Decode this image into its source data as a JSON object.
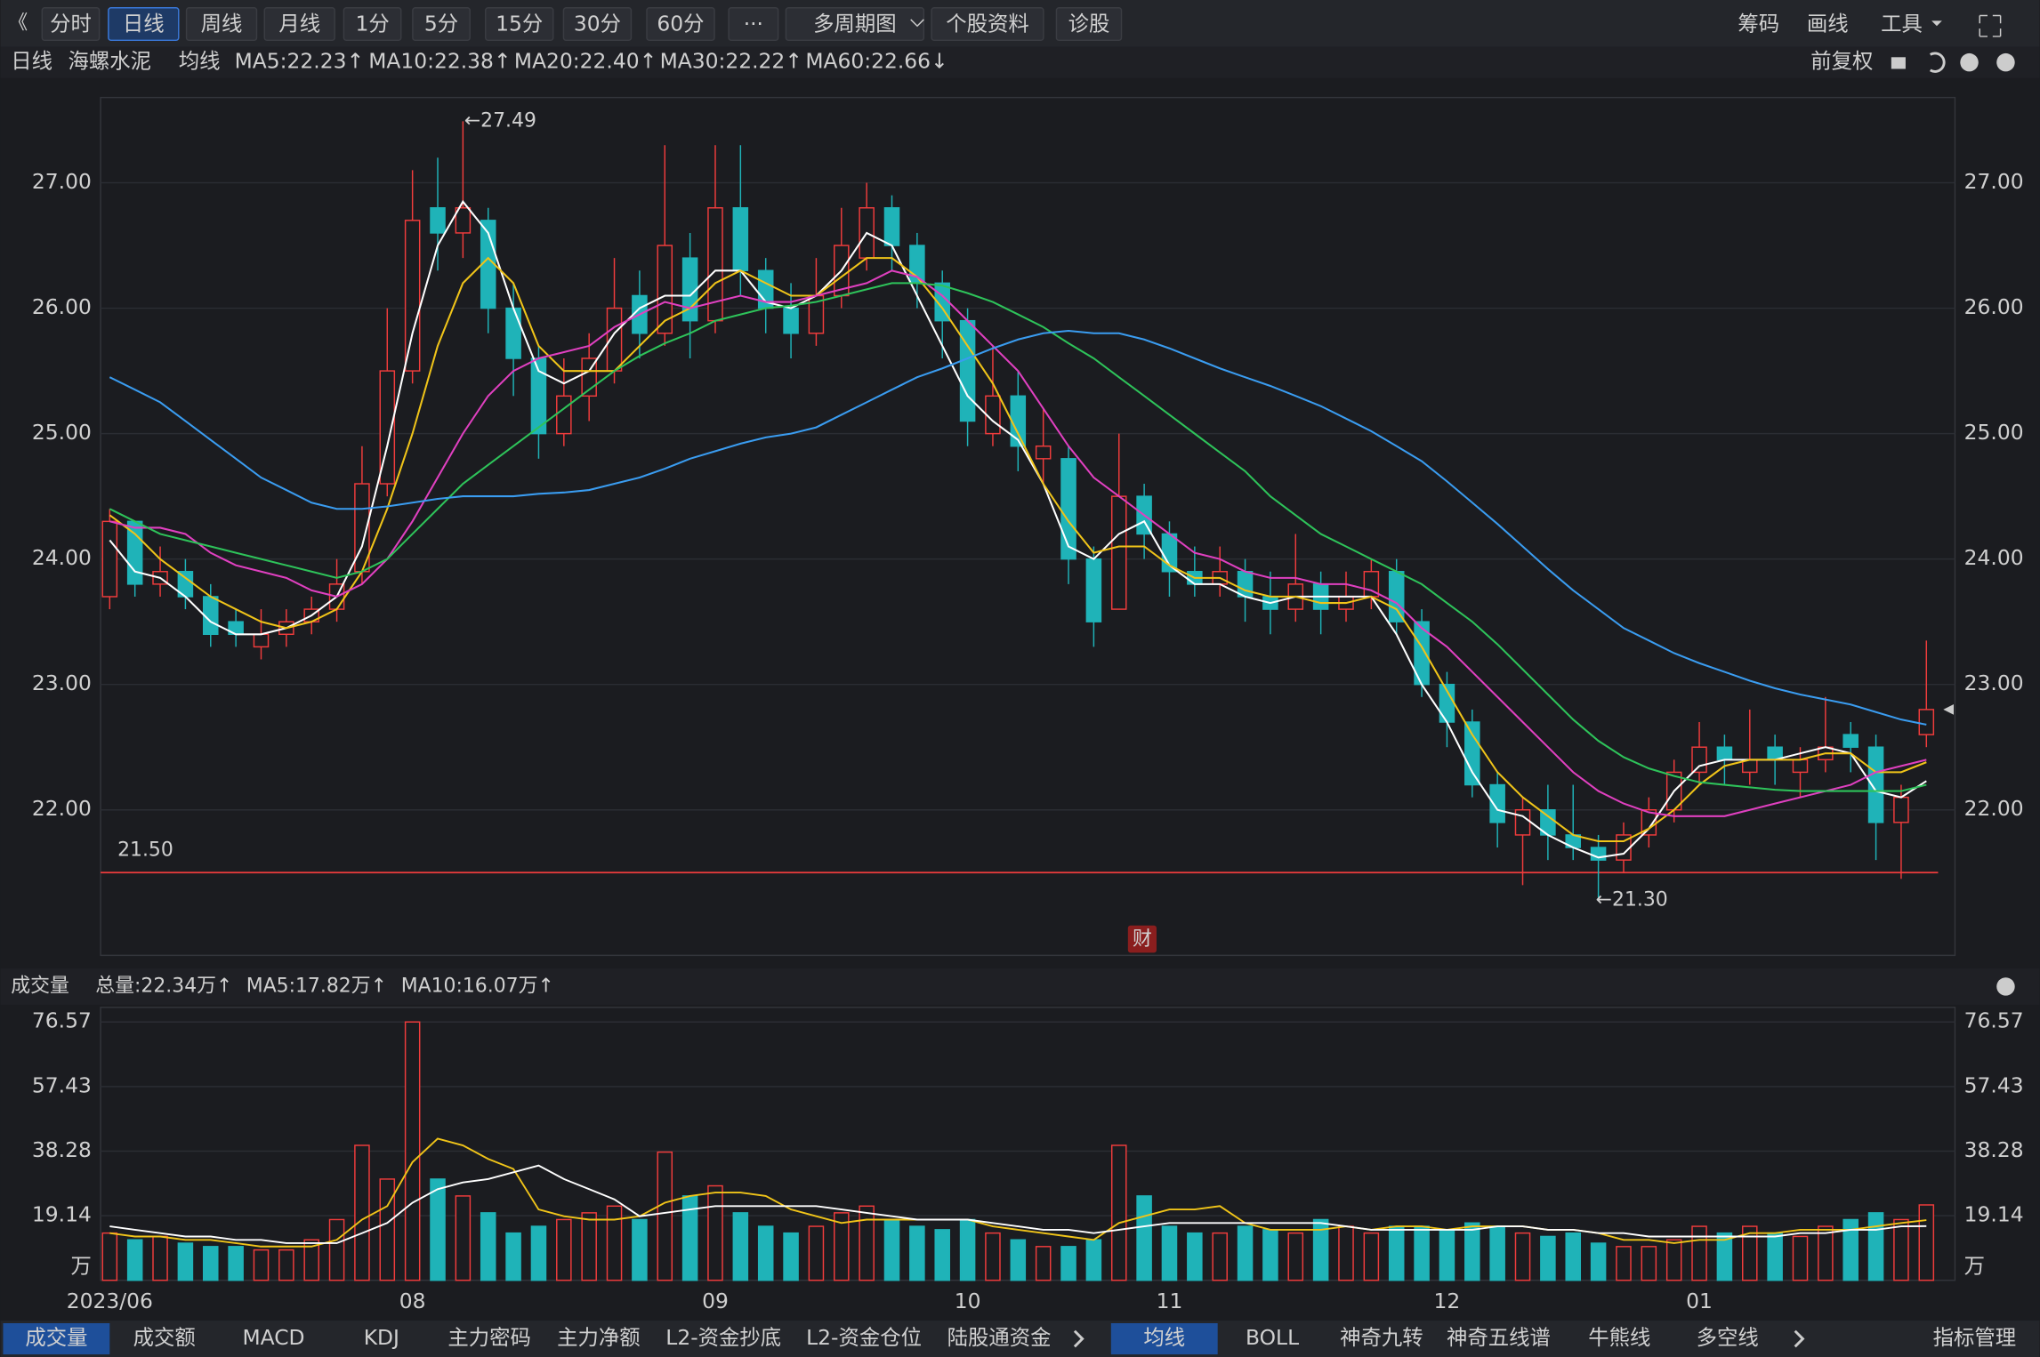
{
  "toolbar": {
    "back": "《",
    "items": [
      "分时",
      "日线",
      "周线",
      "月线",
      "1分",
      "5分",
      "15分",
      "30分",
      "60分",
      "···",
      "多周期图",
      "个股资料",
      "诊股"
    ],
    "right": [
      "筹码",
      "画线",
      "工具"
    ]
  },
  "legend": {
    "period": "日线",
    "name": "海螺水泥",
    "ma_title": "均线",
    "adjust": "前复权",
    "items": [
      {
        "text": "MA5:22.23↑",
        "color": "#ffffff"
      },
      {
        "text": "MA10:22.38↑",
        "color": "#f0c419"
      },
      {
        "text": "MA20:22.40↑",
        "color": "#e040c0"
      },
      {
        "text": "MA30:22.22↑",
        "color": "#2ec35a"
      },
      {
        "text": "MA60:22.66↓",
        "color": "#3a9cf0"
      }
    ]
  },
  "volume_legend": {
    "title": "成交量",
    "items": [
      {
        "text": "总量:22.34万↑",
        "color": "#1fc0c8"
      },
      {
        "text": "MA5:17.82万↑",
        "color": "#f0c419"
      },
      {
        "text": "MA10:16.07万↑",
        "color": "#ffffff"
      }
    ]
  },
  "tabs": {
    "left": [
      "成交量",
      "成交额",
      "MACD",
      "KDJ",
      "主力密码",
      "主力净额",
      "L2-资金抄底",
      "L2-资金仓位",
      "陆股通资金"
    ],
    "right": [
      "均线",
      "BOLL",
      "神奇九转",
      "神奇五线谱",
      "牛熊线",
      "多空线",
      "指标管理"
    ]
  },
  "chart_data": [
    {
      "type": "candlestick",
      "up_color": "#f03c3c",
      "down_color": "#1fb3b8",
      "categories": [
        "2023/06",
        null,
        null,
        null,
        null,
        null,
        null,
        null,
        null,
        null,
        null,
        null,
        "08",
        null,
        null,
        null,
        null,
        null,
        null,
        null,
        null,
        null,
        null,
        null,
        "09",
        null,
        null,
        null,
        null,
        null,
        null,
        null,
        null,
        null,
        "10",
        null,
        null,
        null,
        null,
        null,
        null,
        null,
        "11",
        null,
        null,
        null,
        null,
        null,
        null,
        null,
        null,
        null,
        null,
        "12",
        null,
        null,
        null,
        null,
        null,
        null,
        null,
        null,
        null,
        "01",
        null,
        null,
        null,
        null,
        null,
        null,
        null,
        null,
        null
      ],
      "open": [
        23.7,
        24.3,
        23.8,
        23.9,
        23.7,
        23.5,
        23.3,
        23.4,
        23.5,
        23.6,
        23.9,
        24.6,
        25.5,
        26.8,
        26.6,
        26.7,
        26.0,
        25.6,
        25.0,
        25.3,
        25.5,
        26.1,
        25.8,
        26.4,
        25.9,
        26.8,
        26.3,
        26.0,
        25.8,
        26.1,
        26.4,
        26.8,
        26.5,
        26.2,
        25.9,
        25.0,
        25.3,
        24.8,
        24.8,
        24.0,
        23.6,
        24.5,
        24.2,
        23.9,
        23.8,
        23.9,
        23.7,
        23.6,
        23.8,
        23.6,
        23.7,
        23.9,
        23.5,
        23.0,
        22.7,
        22.2,
        21.8,
        22.0,
        21.8,
        21.7,
        21.6,
        21.8,
        22.0,
        22.3,
        22.5,
        22.3,
        22.5,
        22.3,
        22.4,
        22.6,
        22.5,
        21.9,
        22.6
      ],
      "high": [
        24.4,
        24.3,
        24.1,
        24.0,
        23.8,
        23.6,
        23.6,
        23.6,
        23.7,
        24.0,
        24.9,
        26.0,
        27.1,
        27.2,
        27.49,
        26.8,
        26.2,
        25.7,
        25.6,
        25.8,
        26.4,
        26.3,
        27.3,
        26.6,
        27.3,
        27.3,
        26.4,
        26.2,
        26.4,
        26.8,
        27.0,
        26.9,
        26.6,
        26.3,
        26.0,
        25.7,
        25.5,
        25.2,
        24.9,
        24.1,
        25.0,
        24.6,
        24.3,
        24.1,
        24.1,
        24.0,
        23.9,
        24.2,
        23.9,
        23.9,
        24.0,
        24.0,
        23.6,
        23.1,
        22.8,
        22.3,
        22.1,
        22.2,
        22.2,
        21.8,
        21.9,
        22.1,
        22.4,
        22.7,
        22.6,
        22.8,
        22.6,
        22.5,
        22.9,
        22.7,
        22.6,
        22.2,
        23.35
      ],
      "low": [
        23.6,
        23.7,
        23.7,
        23.6,
        23.3,
        23.3,
        23.2,
        23.3,
        23.4,
        23.5,
        23.8,
        24.5,
        25.4,
        26.3,
        26.4,
        25.8,
        25.3,
        24.8,
        24.9,
        25.1,
        25.4,
        25.6,
        25.7,
        25.6,
        25.8,
        26.1,
        25.8,
        25.6,
        25.7,
        26.0,
        26.3,
        26.3,
        26.0,
        25.6,
        24.9,
        24.9,
        24.7,
        24.6,
        23.8,
        23.3,
        23.6,
        24.0,
        23.7,
        23.7,
        23.7,
        23.5,
        23.4,
        23.5,
        23.4,
        23.5,
        23.6,
        23.4,
        22.9,
        22.5,
        22.1,
        21.7,
        21.4,
        21.6,
        21.6,
        21.3,
        21.5,
        21.7,
        21.9,
        22.2,
        22.2,
        22.2,
        22.2,
        22.1,
        22.3,
        22.3,
        21.6,
        21.45,
        22.5
      ],
      "close": [
        24.3,
        23.8,
        23.9,
        23.7,
        23.4,
        23.4,
        23.4,
        23.5,
        23.6,
        23.8,
        24.6,
        25.5,
        26.7,
        26.6,
        26.8,
        26.0,
        25.6,
        25.0,
        25.3,
        25.6,
        26.0,
        25.8,
        26.5,
        25.9,
        26.8,
        26.3,
        26.0,
        25.8,
        26.1,
        26.5,
        26.8,
        26.5,
        26.2,
        25.9,
        25.1,
        25.3,
        24.9,
        24.9,
        24.0,
        23.5,
        24.5,
        24.2,
        23.9,
        23.8,
        23.9,
        23.7,
        23.6,
        23.8,
        23.6,
        23.7,
        23.9,
        23.5,
        23.0,
        22.7,
        22.2,
        21.9,
        22.0,
        21.8,
        21.7,
        21.6,
        21.8,
        22.0,
        22.3,
        22.5,
        22.4,
        22.4,
        22.4,
        22.4,
        22.5,
        22.5,
        21.9,
        22.1,
        22.8
      ],
      "lines": [
        {
          "color": "#ffffff",
          "values": [
            24.15,
            23.9,
            23.85,
            23.7,
            23.5,
            23.4,
            23.4,
            23.45,
            23.55,
            23.7,
            24.1,
            24.9,
            25.8,
            26.5,
            26.85,
            26.6,
            26.0,
            25.5,
            25.4,
            25.5,
            25.8,
            26.0,
            26.1,
            26.1,
            26.3,
            26.3,
            26.05,
            26.0,
            26.1,
            26.3,
            26.6,
            26.5,
            26.1,
            25.7,
            25.3,
            25.1,
            24.95,
            24.6,
            24.1,
            24.0,
            24.2,
            24.3,
            23.95,
            23.8,
            23.8,
            23.7,
            23.65,
            23.7,
            23.7,
            23.7,
            23.7,
            23.4,
            23.0,
            22.7,
            22.3,
            22.0,
            21.95,
            21.8,
            21.7,
            21.62,
            21.65,
            21.85,
            22.15,
            22.35,
            22.4,
            22.4,
            22.4,
            22.45,
            22.5,
            22.45,
            22.15,
            22.1,
            22.23
          ]
        },
        {
          "color": "#f0c419",
          "values": [
            24.35,
            24.2,
            24.0,
            23.85,
            23.7,
            23.6,
            23.5,
            23.45,
            23.5,
            23.6,
            23.9,
            24.4,
            25.0,
            25.7,
            26.2,
            26.4,
            26.2,
            25.7,
            25.5,
            25.5,
            25.5,
            25.7,
            25.9,
            26.0,
            26.2,
            26.3,
            26.2,
            26.1,
            26.1,
            26.25,
            26.4,
            26.4,
            26.25,
            26.0,
            25.7,
            25.4,
            25.0,
            24.6,
            24.3,
            24.05,
            24.1,
            24.1,
            23.95,
            23.85,
            23.85,
            23.75,
            23.7,
            23.7,
            23.65,
            23.65,
            23.7,
            23.6,
            23.3,
            22.95,
            22.6,
            22.3,
            22.1,
            21.95,
            21.8,
            21.75,
            21.75,
            21.85,
            22.0,
            22.2,
            22.35,
            22.4,
            22.4,
            22.4,
            22.45,
            22.45,
            22.3,
            22.3,
            22.38
          ]
        },
        {
          "color": "#e040c0",
          "values": [
            24.3,
            24.25,
            24.25,
            24.2,
            24.05,
            23.95,
            23.9,
            23.85,
            23.75,
            23.7,
            23.8,
            24.0,
            24.3,
            24.65,
            25.0,
            25.3,
            25.5,
            25.6,
            25.65,
            25.7,
            25.85,
            25.95,
            26.05,
            26.0,
            26.05,
            26.1,
            26.05,
            26.05,
            26.1,
            26.15,
            26.2,
            26.3,
            26.25,
            26.1,
            25.9,
            25.7,
            25.5,
            25.2,
            24.9,
            24.65,
            24.5,
            24.35,
            24.2,
            24.05,
            24.0,
            23.9,
            23.85,
            23.85,
            23.8,
            23.8,
            23.75,
            23.65,
            23.45,
            23.3,
            23.1,
            22.9,
            22.7,
            22.5,
            22.3,
            22.15,
            22.05,
            21.98,
            21.95,
            21.95,
            21.95,
            22.0,
            22.05,
            22.1,
            22.15,
            22.2,
            22.3,
            22.35,
            22.4
          ]
        },
        {
          "color": "#2ec35a",
          "values": [
            24.4,
            24.3,
            24.2,
            24.15,
            24.1,
            24.05,
            24.0,
            23.95,
            23.9,
            23.85,
            23.9,
            24.0,
            24.2,
            24.4,
            24.6,
            24.75,
            24.9,
            25.05,
            25.2,
            25.35,
            25.5,
            25.62,
            25.72,
            25.8,
            25.9,
            25.95,
            26.0,
            26.02,
            26.05,
            26.1,
            26.15,
            26.2,
            26.2,
            26.18,
            26.12,
            26.05,
            25.95,
            25.85,
            25.72,
            25.6,
            25.45,
            25.3,
            25.15,
            25.0,
            24.85,
            24.7,
            24.5,
            24.35,
            24.2,
            24.1,
            24.0,
            23.9,
            23.8,
            23.65,
            23.5,
            23.32,
            23.12,
            22.92,
            22.72,
            22.55,
            22.42,
            22.33,
            22.27,
            22.22,
            22.2,
            22.18,
            22.16,
            22.15,
            22.15,
            22.15,
            22.15,
            22.15,
            22.2
          ]
        },
        {
          "color": "#3a9cf0",
          "values": [
            25.45,
            25.35,
            25.25,
            25.1,
            24.95,
            24.8,
            24.65,
            24.55,
            24.45,
            24.4,
            24.4,
            24.42,
            24.45,
            24.48,
            24.5,
            24.5,
            24.5,
            24.52,
            24.53,
            24.55,
            24.6,
            24.65,
            24.72,
            24.8,
            24.86,
            24.92,
            24.97,
            25.0,
            25.05,
            25.15,
            25.25,
            25.35,
            25.45,
            25.52,
            25.6,
            25.68,
            25.75,
            25.8,
            25.82,
            25.8,
            25.8,
            25.75,
            25.68,
            25.6,
            25.52,
            25.45,
            25.38,
            25.3,
            25.22,
            25.12,
            25.02,
            24.9,
            24.78,
            24.62,
            24.45,
            24.28,
            24.1,
            23.92,
            23.75,
            23.6,
            23.45,
            23.35,
            23.25,
            23.17,
            23.1,
            23.03,
            22.97,
            22.92,
            22.88,
            22.84,
            22.78,
            22.72,
            22.68
          ]
        }
      ],
      "ylim": [
        20.84,
        27.68
      ],
      "yticks": [
        {
          "value": 22,
          "label": "22.00"
        },
        {
          "value": 23,
          "label": "23.00"
        },
        {
          "value": 24,
          "label": "24.00"
        },
        {
          "value": 25,
          "label": "25.00"
        },
        {
          "value": 26,
          "label": "26.00"
        },
        {
          "value": 27,
          "label": "27.00"
        }
      ],
      "grid": true,
      "high_label": "←27.49",
      "low_label": "←21.30",
      "hline": {
        "value": 21.5,
        "label": "21.50",
        "color": "#f03c3c"
      },
      "badge": "财"
    },
    {
      "type": "bar",
      "unit": "万",
      "values": [
        14,
        12,
        13,
        11,
        10,
        10,
        9,
        9,
        12,
        18,
        40,
        30,
        76.57,
        30,
        25,
        20,
        14,
        16,
        18,
        20,
        22,
        18,
        38,
        25,
        28,
        20,
        16,
        14,
        16,
        20,
        22,
        18,
        16,
        15,
        18,
        14,
        12,
        10,
        10,
        12,
        40,
        25,
        16,
        14,
        14,
        16,
        15,
        14,
        18,
        16,
        14,
        16,
        16,
        15,
        17,
        16,
        14,
        13,
        14,
        11,
        10,
        10,
        12,
        16,
        14,
        16,
        14,
        13,
        16,
        18,
        20,
        18,
        22.34
      ],
      "lines": [
        {
          "color": "#f0c419",
          "values": [
            14,
            13,
            13,
            12,
            12,
            11,
            10,
            10,
            10,
            12,
            18,
            22,
            35,
            42,
            40,
            36,
            33,
            21,
            19,
            18,
            18,
            19,
            23,
            25,
            26,
            26,
            25,
            21,
            19,
            17,
            18,
            18,
            18,
            18,
            18,
            16,
            15,
            14,
            13,
            12,
            17,
            19,
            21,
            21,
            22,
            17,
            15,
            15,
            15,
            16,
            15,
            16,
            16,
            15,
            16,
            16,
            16,
            15,
            15,
            14,
            12,
            12,
            11,
            12,
            12,
            14,
            14,
            15,
            15,
            15,
            16,
            17,
            17.82
          ]
        },
        {
          "color": "#ffffff",
          "values": [
            16,
            15,
            14,
            13,
            13,
            12,
            12,
            11,
            11,
            11,
            14,
            17,
            23,
            27,
            29,
            30,
            32,
            34,
            30,
            27,
            24,
            19,
            20,
            21,
            22,
            22,
            22,
            22,
            22,
            21,
            20,
            19,
            18,
            18,
            18,
            17,
            16,
            15,
            15,
            14,
            15,
            16,
            17,
            17,
            17,
            17,
            17,
            17,
            17,
            16,
            15,
            15,
            15,
            15,
            15,
            16,
            16,
            15,
            15,
            14,
            14,
            13,
            13,
            13,
            13,
            13,
            13,
            14,
            14,
            15,
            15,
            16,
            16.07
          ]
        }
      ],
      "ylim": [
        0,
        80.9
      ],
      "yticks": [
        19.14,
        38.28,
        57.43,
        76.57
      ],
      "grid": true
    }
  ]
}
